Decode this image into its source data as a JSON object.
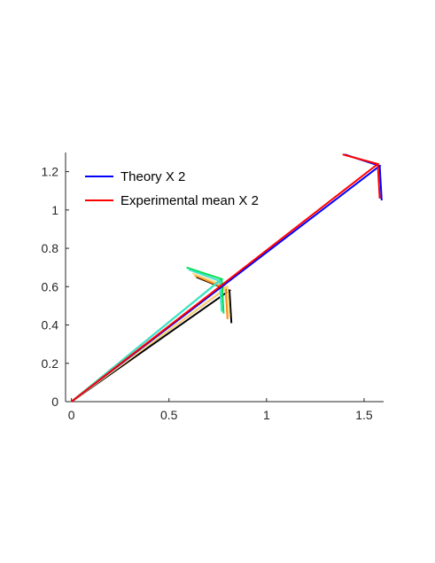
{
  "chart_data": {
    "type": "line",
    "title": "",
    "xlabel": "",
    "ylabel": "",
    "xlim": [
      -0.03,
      1.6
    ],
    "ylim": [
      0,
      1.3
    ],
    "xticks": [
      0,
      0.5,
      1,
      1.5
    ],
    "xtick_labels": [
      "0",
      "0.5",
      "1",
      "1.5"
    ],
    "yticks": [
      0,
      0.2,
      0.4,
      0.6,
      0.8,
      1,
      1.2
    ],
    "ytick_labels": [
      "0",
      "0.2",
      "0.4",
      "0.6",
      "0.8",
      "1",
      "1.2"
    ],
    "grid": false,
    "legend_position": "top-left",
    "legend": [
      {
        "label": "Theory X 2",
        "color": "#0000ff"
      },
      {
        "label": "Experimental mean X 2",
        "color": "#ff0000"
      }
    ],
    "series": [
      {
        "color": "#000000",
        "points": [
          [
            0,
            0
          ],
          [
            0.81,
            0.58
          ],
          [
            0.64,
            0.65
          ],
          [
            0.81,
            0.58
          ],
          [
            0.82,
            0.41
          ]
        ]
      },
      {
        "color": "#ff8c1a",
        "points": [
          [
            0,
            0
          ],
          [
            0.79,
            0.59
          ],
          [
            0.63,
            0.66
          ],
          [
            0.79,
            0.59
          ],
          [
            0.8,
            0.43
          ]
        ]
      },
      {
        "color": "#f5dc8c",
        "points": [
          [
            0,
            0
          ],
          [
            0.8,
            0.6
          ],
          [
            0.62,
            0.67
          ],
          [
            0.8,
            0.6
          ],
          [
            0.81,
            0.44
          ]
        ]
      },
      {
        "color": "#00e050",
        "points": [
          [
            0,
            0
          ],
          [
            0.77,
            0.64
          ],
          [
            0.59,
            0.7
          ],
          [
            0.77,
            0.64
          ],
          [
            0.78,
            0.46
          ]
        ]
      },
      {
        "color": "#40e0d0",
        "points": [
          [
            0,
            0
          ],
          [
            0.76,
            0.63
          ],
          [
            0.6,
            0.69
          ],
          [
            0.76,
            0.63
          ],
          [
            0.77,
            0.47
          ]
        ]
      },
      {
        "color": "#0000ff",
        "points": [
          [
            0,
            0
          ],
          [
            1.58,
            1.23
          ],
          [
            1.4,
            1.29
          ],
          [
            1.58,
            1.23
          ],
          [
            1.59,
            1.05
          ]
        ]
      },
      {
        "color": "#ff0000",
        "points": [
          [
            0,
            0
          ],
          [
            1.57,
            1.24
          ],
          [
            1.39,
            1.29
          ],
          [
            1.57,
            1.24
          ],
          [
            1.58,
            1.06
          ]
        ]
      }
    ]
  }
}
